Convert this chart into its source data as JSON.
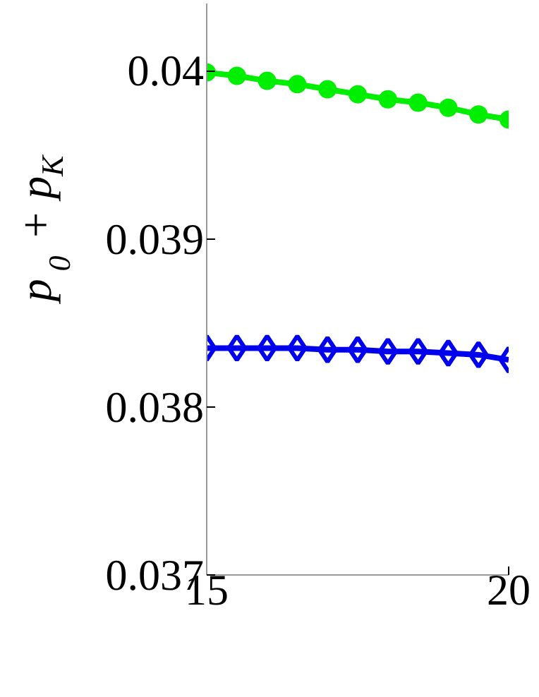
{
  "chart_data": {
    "type": "line",
    "ylabel": "p$_{0}$ + p$_{K}$",
    "x": [
      15,
      15.5,
      16,
      16.5,
      17,
      17.5,
      18,
      18.5,
      19,
      19.5,
      20
    ],
    "series": [
      {
        "color": "#00ee00",
        "marker": "circle",
        "values": [
          0.03999,
          0.03997,
          0.03994,
          0.03992,
          0.03989,
          0.03986,
          0.03983,
          0.03981,
          0.03978,
          0.03974,
          0.03971
        ]
      },
      {
        "color": "#0000ee",
        "marker": "diamond",
        "values": [
          0.03835,
          0.03835,
          0.03835,
          0.03835,
          0.03834,
          0.03834,
          0.03833,
          0.03833,
          0.03832,
          0.03831,
          0.03828
        ]
      }
    ],
    "xlim": [
      15,
      20
    ],
    "ylim": [
      0.037,
      0.0404
    ],
    "xticks": [
      15,
      20
    ],
    "yticks": [
      0.037,
      0.038,
      0.039,
      {
        "value": 0.04,
        "label": "0.04"
      }
    ],
    "grid": false
  }
}
